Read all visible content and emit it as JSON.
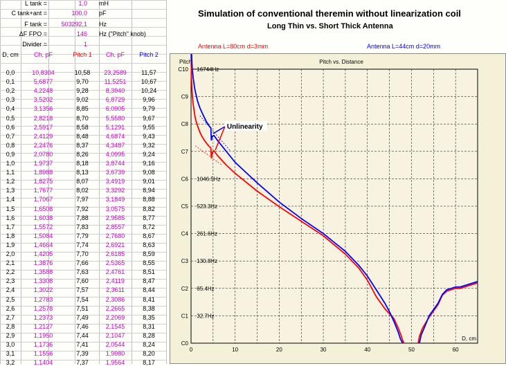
{
  "params": [
    {
      "label": "L tank =",
      "value": "1,0",
      "unit": "mH"
    },
    {
      "label": "C tank+ant =",
      "value": "100,0",
      "unit": "pF"
    },
    {
      "label": "F tank =",
      "value": "503292,1",
      "unit": "Hz"
    },
    {
      "label": "ΔF FPO =",
      "value": "146",
      "unit": "Hz (\"Pitch\" knob)"
    },
    {
      "label": "Divider =",
      "value": "1",
      "unit": ""
    }
  ],
  "table": {
    "headers": [
      "D, cm",
      "Ch, pF",
      "Pitch 1",
      "Ch, pF",
      "Pitch 2"
    ],
    "rows": [
      [
        "0,0",
        "10,8304",
        "10,58",
        "23,2589",
        "11,57"
      ],
      [
        "0,1",
        "5,6877",
        "9,70",
        "11,5251",
        "10,67"
      ],
      [
        "0,2",
        "4,2248",
        "9,28",
        "8,3940",
        "10,24"
      ],
      [
        "0,3",
        "3,5202",
        "9,02",
        "6,8729",
        "9,96"
      ],
      [
        "0,4",
        "3,1356",
        "8,85",
        "6,0905",
        "9,79"
      ],
      [
        "0,5",
        "2,8218",
        "8,70",
        "5,5580",
        "9,67"
      ],
      [
        "0,6",
        "2,5917",
        "8,58",
        "5,1291",
        "9,55"
      ],
      [
        "0,7",
        "2,4129",
        "8,48",
        "4,6874",
        "9,43"
      ],
      [
        "0,8",
        "2,2476",
        "8,37",
        "4,3487",
        "9,32"
      ],
      [
        "0,9",
        "2,0780",
        "8,26",
        "4,0995",
        "9,24"
      ],
      [
        "1,0",
        "1,9737",
        "8,18",
        "3,8744",
        "9,16"
      ],
      [
        "1,1",
        "1,8988",
        "8,13",
        "3,6739",
        "9,08"
      ],
      [
        "1,2",
        "1,8275",
        "8,07",
        "3,4919",
        "9,01"
      ],
      [
        "1,3",
        "1,7677",
        "8,02",
        "3,3292",
        "8,94"
      ],
      [
        "1,4",
        "1,7067",
        "7,97",
        "3,1849",
        "8,88"
      ],
      [
        "1,5",
        "1,6508",
        "7,92",
        "3,0575",
        "8,82"
      ],
      [
        "1,6",
        "1,6038",
        "7,88",
        "2,9585",
        "8,77"
      ],
      [
        "1,7",
        "1,5572",
        "7,83",
        "2,8557",
        "8,72"
      ],
      [
        "1,8",
        "1,5084",
        "7,79",
        "2,7680",
        "8,67"
      ],
      [
        "1,9",
        "1,4664",
        "7,74",
        "2,6921",
        "8,63"
      ],
      [
        "2,0",
        "1,4205",
        "7,70",
        "2,6185",
        "8,59"
      ],
      [
        "2,1",
        "1,3876",
        "7,66",
        "2,5365",
        "8,55"
      ],
      [
        "2,2",
        "1,3588",
        "7,63",
        "2,4761",
        "8,51"
      ],
      [
        "2,3",
        "1,3308",
        "7,60",
        "2,4119",
        "8,47"
      ],
      [
        "2,4",
        "1,3022",
        "7,57",
        "2,3611",
        "8,44"
      ],
      [
        "2,5",
        "1,2783",
        "7,54",
        "2,3086",
        "8,41"
      ],
      [
        "2,6",
        "1,2578",
        "7,51",
        "2,2665",
        "8,38"
      ],
      [
        "2,7",
        "1,2373",
        "7,49",
        "2,2069",
        "8,35"
      ],
      [
        "2,8",
        "1,2127",
        "7,46",
        "2,1545",
        "8,31"
      ],
      [
        "2,9",
        "1,1950",
        "7,44",
        "2,1047",
        "8,28"
      ],
      [
        "3,0",
        "1,1736",
        "7,41",
        "2,0544",
        "8,24"
      ],
      [
        "3,1",
        "1,1556",
        "7,39",
        "1,9980",
        "8,20"
      ],
      [
        "3,2",
        "1,1404",
        "7,37",
        "1,9564",
        "8,17"
      ]
    ]
  },
  "colors": {
    "param_value": "#cc00cc",
    "series1": "#ff0000",
    "series2": "#0000ff",
    "plot_bg": "#f5f0d8"
  },
  "chart_data": {
    "type": "line",
    "title": "Simulation of conventional theremin without linearization coil",
    "subtitle": "Long Thin vs. Short Thick Antenna",
    "plot_title": "Pitch vs. Distance",
    "xlabel": "D, cm",
    "ylabel": "Pitch",
    "xlim": [
      0,
      65
    ],
    "ylim": [
      0,
      10
    ],
    "x_ticks": [
      "0",
      "10",
      "20",
      "30",
      "40",
      "50",
      "60"
    ],
    "y_ticks": [
      "C0",
      "C1",
      "C2",
      "C3",
      "C4",
      "C5",
      "C6",
      "C7",
      "C8",
      "C9",
      "C10"
    ],
    "y_annotations": [
      {
        "y": 10,
        "text": "16744Hz"
      },
      {
        "y": 6,
        "text": "1046.5Hz"
      },
      {
        "y": 5,
        "text": "523.3Hz"
      },
      {
        "y": 4,
        "text": "261.6Hz"
      },
      {
        "y": 3,
        "text": "130.8Hz"
      },
      {
        "y": 2,
        "text": "65.4Hz"
      },
      {
        "y": 1,
        "text": "32.7Hz"
      }
    ],
    "annotation": {
      "text": "Unlinearity",
      "x": 5,
      "y": 7.6
    },
    "grid": true,
    "series": [
      {
        "name": "Antenna L=80cm d=3mm",
        "color": "#ff0000",
        "x": [
          0,
          0.1,
          0.2,
          0.3,
          0.5,
          0.8,
          1.0,
          1.5,
          2.0,
          2.5,
          3.0,
          3.5,
          4.0,
          4.5,
          4.6,
          4.8,
          5.2,
          6,
          8,
          10,
          15,
          20,
          25,
          30,
          35,
          38,
          40,
          42,
          44,
          46,
          47,
          47.6,
          48,
          48.3
        ],
        "y": [
          10.58,
          9.7,
          9.28,
          9.02,
          8.7,
          8.37,
          8.18,
          7.92,
          7.7,
          7.54,
          7.41,
          7.3,
          7.2,
          7.12,
          6.75,
          6.95,
          7.02,
          6.85,
          6.5,
          6.2,
          5.55,
          4.98,
          4.45,
          3.92,
          3.25,
          2.75,
          2.3,
          1.7,
          1.25,
          0.9,
          0.55,
          0.3,
          0.1,
          0
        ],
        "x2": [
          51.5,
          51.8,
          52.5,
          54,
          56,
          57,
          58,
          59,
          60,
          61,
          62,
          65
        ],
        "y2": [
          0,
          0.25,
          0.55,
          0.95,
          1.4,
          1.75,
          1.9,
          1.95,
          2.0,
          2.0,
          2.05,
          2.2
        ]
      },
      {
        "name": "Antenna L=44cm d=20mm",
        "color": "#0000ff",
        "x": [
          0,
          0.1,
          0.2,
          0.3,
          0.5,
          0.8,
          1.0,
          1.5,
          2.0,
          2.5,
          3.0,
          3.5,
          4.0,
          4.5,
          4.6,
          4.8,
          5.2,
          6,
          8,
          10,
          15,
          20,
          25,
          30,
          35,
          38,
          40,
          42,
          44,
          45,
          46,
          47,
          47.5,
          48
        ],
        "y": [
          11.57,
          10.67,
          10.24,
          9.96,
          9.67,
          9.32,
          9.16,
          8.82,
          8.59,
          8.41,
          8.24,
          8.08,
          7.95,
          7.85,
          7.4,
          7.55,
          7.58,
          7.4,
          7.0,
          6.6,
          5.85,
          5.15,
          4.55,
          4.0,
          3.35,
          2.85,
          2.45,
          1.95,
          1.45,
          1.15,
          0.8,
          0.4,
          0.15,
          0
        ],
        "x2": [
          51.8,
          52.2,
          53,
          54,
          56,
          57,
          58,
          59,
          60,
          61,
          62,
          65
        ],
        "y2": [
          0,
          0.3,
          0.6,
          1.0,
          1.45,
          1.78,
          1.95,
          2.0,
          2.05,
          2.05,
          2.1,
          2.25
        ]
      }
    ]
  }
}
